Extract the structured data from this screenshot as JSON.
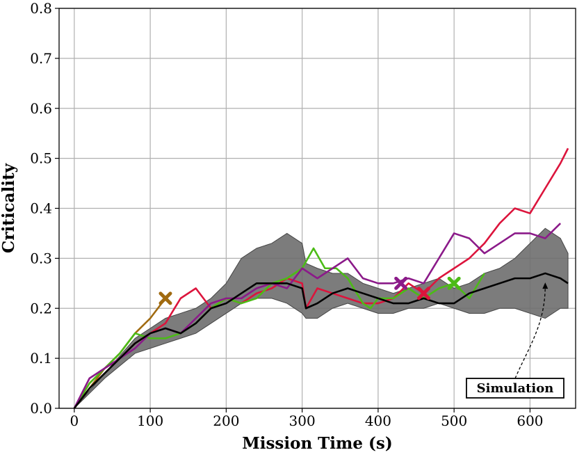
{
  "chart_data": {
    "type": "line",
    "xlabel": "Mission Time (s)",
    "ylabel": "Criticality",
    "xlim": [
      -20,
      660
    ],
    "ylim": [
      0.0,
      0.8
    ],
    "xticks": [
      0,
      100,
      200,
      300,
      400,
      500,
      600
    ],
    "yticks": [
      0.0,
      0.1,
      0.2,
      0.3,
      0.4,
      0.5,
      0.6,
      0.7,
      0.8
    ],
    "xtick_labels": [
      "0",
      "100",
      "200",
      "300",
      "400",
      "500",
      "600"
    ],
    "ytick_labels": [
      "0.0",
      "0.1",
      "0.2",
      "0.3",
      "0.4",
      "0.5",
      "0.6",
      "0.7",
      "0.8"
    ],
    "grid": true,
    "annotation": {
      "text": "Simulation",
      "points_to": [
        620,
        0.26
      ]
    },
    "band": {
      "color": "#6e6e6e",
      "x": [
        0,
        40,
        80,
        100,
        120,
        140,
        160,
        180,
        200,
        220,
        240,
        260,
        280,
        300,
        305,
        320,
        340,
        360,
        380,
        400,
        420,
        440,
        460,
        480,
        500,
        520,
        540,
        560,
        580,
        600,
        620,
        640,
        650
      ],
      "upper": [
        0.0,
        0.07,
        0.14,
        0.16,
        0.18,
        0.19,
        0.2,
        0.22,
        0.25,
        0.3,
        0.32,
        0.33,
        0.35,
        0.33,
        0.29,
        0.28,
        0.27,
        0.27,
        0.25,
        0.24,
        0.23,
        0.24,
        0.25,
        0.26,
        0.24,
        0.25,
        0.27,
        0.28,
        0.3,
        0.33,
        0.36,
        0.34,
        0.31
      ],
      "lower": [
        0.0,
        0.06,
        0.11,
        0.12,
        0.13,
        0.14,
        0.15,
        0.17,
        0.19,
        0.21,
        0.22,
        0.22,
        0.21,
        0.19,
        0.18,
        0.18,
        0.2,
        0.21,
        0.2,
        0.19,
        0.19,
        0.2,
        0.2,
        0.21,
        0.2,
        0.19,
        0.19,
        0.2,
        0.2,
        0.19,
        0.18,
        0.2,
        0.2
      ]
    },
    "series": [
      {
        "color": "#000000",
        "x": [
          0,
          20,
          40,
          60,
          80,
          100,
          120,
          140,
          160,
          180,
          200,
          220,
          240,
          260,
          280,
          300,
          305,
          320,
          340,
          360,
          380,
          400,
          420,
          440,
          460,
          480,
          500,
          520,
          540,
          560,
          580,
          600,
          620,
          640,
          650
        ],
        "y": [
          0.0,
          0.04,
          0.07,
          0.1,
          0.13,
          0.15,
          0.16,
          0.15,
          0.17,
          0.2,
          0.21,
          0.23,
          0.25,
          0.25,
          0.25,
          0.24,
          0.2,
          0.21,
          0.23,
          0.24,
          0.23,
          0.22,
          0.21,
          0.21,
          0.22,
          0.21,
          0.21,
          0.23,
          0.24,
          0.25,
          0.26,
          0.26,
          0.27,
          0.26,
          0.25
        ]
      },
      {
        "color": "#a06a10",
        "x": [
          0,
          20,
          40,
          60,
          80,
          100,
          120
        ],
        "y": [
          0.0,
          0.04,
          0.08,
          0.11,
          0.15,
          0.18,
          0.22
        ],
        "end_marker": true
      },
      {
        "color": "#dc143c",
        "x": [
          0,
          20,
          40,
          60,
          80,
          100,
          120,
          140,
          160,
          180,
          200,
          220,
          240,
          260,
          280,
          300,
          305,
          320,
          340,
          360,
          380,
          400,
          420,
          440,
          460,
          480,
          500,
          520,
          540,
          560,
          580,
          600,
          620,
          640,
          650
        ],
        "y": [
          0.0,
          0.05,
          0.08,
          0.1,
          0.13,
          0.15,
          0.17,
          0.22,
          0.24,
          0.2,
          0.22,
          0.21,
          0.23,
          0.24,
          0.26,
          0.25,
          0.2,
          0.24,
          0.23,
          0.22,
          0.21,
          0.21,
          0.22,
          0.25,
          0.23,
          0.26,
          0.28,
          0.3,
          0.33,
          0.37,
          0.4,
          0.39,
          0.44,
          0.49,
          0.52
        ]
      },
      {
        "color": "#4cbb17",
        "x": [
          0,
          20,
          40,
          60,
          80,
          100,
          120,
          140,
          160,
          180,
          200,
          220,
          240,
          260,
          280,
          300,
          315,
          330,
          345,
          360,
          380,
          390,
          400,
          420,
          440,
          460,
          480,
          500,
          520,
          540
        ],
        "y": [
          0.0,
          0.05,
          0.08,
          0.11,
          0.15,
          0.14,
          0.14,
          0.15,
          0.17,
          0.2,
          0.22,
          0.21,
          0.22,
          0.25,
          0.26,
          0.28,
          0.32,
          0.28,
          0.28,
          0.26,
          0.21,
          0.2,
          0.22,
          0.22,
          0.24,
          0.22,
          0.24,
          0.25,
          0.22,
          0.27
        ],
        "end_marker_at": [
          500,
          0.25
        ]
      },
      {
        "color": "#8b1a89",
        "x": [
          0,
          20,
          40,
          60,
          80,
          100,
          120,
          140,
          160,
          180,
          200,
          220,
          240,
          260,
          280,
          300,
          320,
          340,
          360,
          380,
          400,
          420,
          440,
          460,
          480,
          500,
          520,
          540,
          560,
          580,
          600,
          620,
          640
        ],
        "y": [
          0.0,
          0.06,
          0.08,
          0.1,
          0.12,
          0.15,
          0.16,
          0.15,
          0.18,
          0.21,
          0.22,
          0.22,
          0.24,
          0.25,
          0.24,
          0.28,
          0.26,
          0.28,
          0.3,
          0.26,
          0.25,
          0.25,
          0.26,
          0.25,
          0.3,
          0.35,
          0.34,
          0.31,
          0.33,
          0.35,
          0.35,
          0.34,
          0.37
        ],
        "end_marker_at": [
          430,
          0.25
        ]
      }
    ],
    "extra_markers": [
      {
        "color": "#dc143c",
        "x": 460,
        "y": 0.23
      }
    ]
  }
}
